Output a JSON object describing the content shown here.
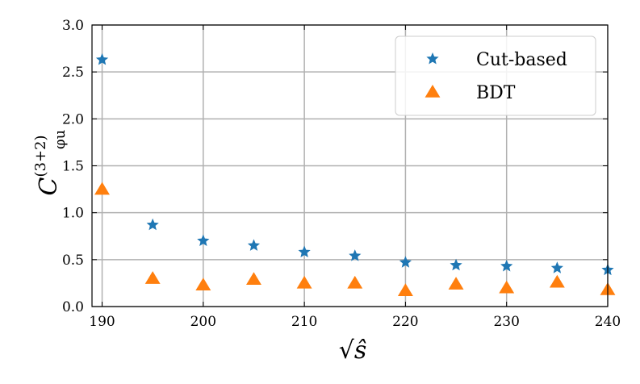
{
  "chart_data": {
    "type": "scatter",
    "xlabel": "√ŝ",
    "ylabel_main": "C",
    "ylabel_sub": "φu",
    "ylabel_sup": "(3+2)",
    "xlim": [
      189,
      240
    ],
    "ylim": [
      0.0,
      3.0
    ],
    "x_ticks": [
      190,
      200,
      210,
      220,
      230,
      240
    ],
    "x_tick_labels": [
      "190",
      "200",
      "210",
      "220",
      "230",
      "240"
    ],
    "y_ticks": [
      0.0,
      0.5,
      1.0,
      1.5,
      2.0,
      2.5,
      3.0
    ],
    "y_tick_labels": [
      "0.0",
      "0.5",
      "1.0",
      "1.5",
      "2.0",
      "2.5",
      "3.0"
    ],
    "grid": true,
    "legend_position": "top-right",
    "x": [
      190,
      195,
      200,
      205,
      210,
      215,
      220,
      225,
      230,
      235,
      240
    ],
    "series": [
      {
        "name": "Cut-based",
        "marker": "star",
        "color": "#1f77b4",
        "values": [
          2.63,
          0.87,
          0.7,
          0.65,
          0.58,
          0.54,
          0.47,
          0.44,
          0.43,
          0.41,
          0.39
        ]
      },
      {
        "name": "BDT",
        "marker": "triangle",
        "color": "#ff7f0e",
        "values": [
          1.25,
          0.3,
          0.23,
          0.29,
          0.25,
          0.25,
          0.17,
          0.24,
          0.2,
          0.26,
          0.18
        ]
      }
    ]
  }
}
